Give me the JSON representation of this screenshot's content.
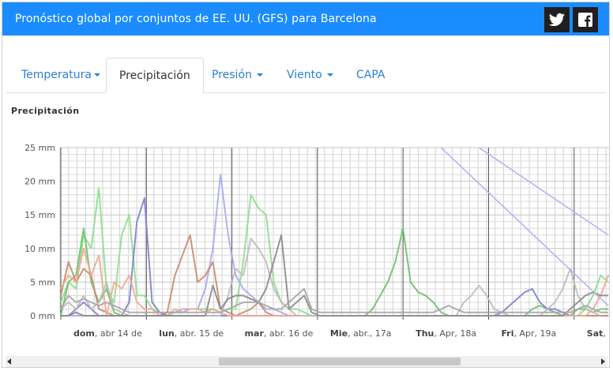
{
  "header": {
    "title": "Pronóstico global por conjuntos de EE. UU. (GFS) para Barcelona",
    "twitter_icon": "twitter-icon",
    "facebook_icon": "facebook-icon",
    "bg_color": "#1a8cff"
  },
  "tabs": [
    {
      "label": "Temperatura",
      "dropdown": true,
      "active": false
    },
    {
      "label": "Precipitación",
      "dropdown": false,
      "active": true
    },
    {
      "label": "Presión",
      "dropdown": true,
      "active": false
    },
    {
      "label": "Viento",
      "dropdown": true,
      "active": false
    },
    {
      "label": "CAPA",
      "dropdown": false,
      "active": false
    }
  ],
  "chart_title": "Precipitación",
  "chart_data": {
    "type": "line",
    "title": "Precipitación",
    "ylim": [
      0,
      25
    ],
    "y_ticks": [
      "0 mm",
      "5 mm",
      "10 mm",
      "15 mm",
      "20 mm",
      "25 mm"
    ],
    "x_labels": [
      {
        "bold": "dom",
        "rest": ", abr 14 de"
      },
      {
        "bold": "lun",
        "rest": ", abr. 15 de"
      },
      {
        "bold": "mar",
        "rest": ", abr. 16 de"
      },
      {
        "bold": "Mie",
        "rest": ", abr., 17a"
      },
      {
        "bold": "Thu",
        "rest": ", Apr, 18a"
      },
      {
        "bold": "Fri",
        "rest": ", Apr, 19a"
      },
      {
        "bold": "Sat",
        "rest": ","
      }
    ],
    "grid": true,
    "series": [
      {
        "color": "#8dde8d",
        "values": [
          2,
          5,
          4,
          12,
          10,
          19,
          4,
          2,
          12,
          15,
          3,
          3,
          1,
          0.5,
          0,
          0.5,
          0.5,
          1,
          1,
          1,
          1,
          0.5,
          1,
          1,
          8,
          18,
          16,
          15,
          5,
          2,
          1,
          1,
          0.5,
          0,
          0,
          0,
          0,
          0,
          0,
          0,
          0,
          0,
          0,
          0,
          0,
          0,
          0,
          0,
          0,
          0,
          0,
          0,
          0,
          0,
          0,
          0,
          0,
          0,
          0,
          0,
          0,
          0,
          0,
          0,
          0,
          0,
          0,
          0,
          0,
          1,
          3,
          6,
          5
        ]
      },
      {
        "color": "#6fbf6f",
        "values": [
          0,
          5,
          6,
          13,
          5,
          2,
          4,
          0.5,
          0,
          0,
          0,
          0,
          0,
          0,
          0,
          0,
          0,
          0,
          0,
          0,
          0,
          0,
          0,
          0,
          0,
          0,
          0,
          0,
          0,
          0,
          0,
          0,
          0,
          0,
          0,
          0,
          0,
          0,
          0,
          0,
          0,
          1,
          3,
          5,
          8,
          13,
          5,
          3.5,
          3,
          2,
          0.5,
          0,
          0,
          0,
          0,
          0,
          0,
          0,
          0,
          0,
          0,
          0,
          1,
          1.5,
          1,
          0.5,
          0,
          0,
          1,
          1,
          0.5,
          1,
          1
        ]
      },
      {
        "color": "#7f7fd0",
        "values": [
          0,
          0,
          1,
          2,
          1,
          0,
          0,
          0,
          0,
          2,
          14,
          17.5,
          2,
          0.5,
          0,
          0,
          0,
          0,
          0,
          0,
          0,
          0,
          0,
          0,
          0,
          0,
          0,
          0,
          0,
          0,
          0,
          0,
          0,
          0,
          0,
          0,
          0,
          0,
          0,
          0,
          0,
          0,
          0,
          0,
          0,
          0,
          0,
          0,
          0,
          0,
          0,
          0,
          0,
          0,
          0,
          0,
          0,
          0,
          0.5,
          1.5,
          2.5,
          3.5,
          4,
          2,
          1,
          1,
          0.5,
          0,
          0,
          0,
          0,
          0,
          0
        ]
      },
      {
        "color": "#a8a8ef",
        "values": [
          0,
          0,
          0,
          0,
          0,
          0,
          0,
          0,
          0,
          0,
          0,
          0,
          0,
          0,
          0.5,
          0.5,
          1,
          1,
          1,
          4,
          10,
          21,
          12,
          6,
          4,
          3,
          2,
          1,
          1,
          0.5,
          0,
          0,
          0,
          0,
          0,
          0,
          0,
          0,
          0,
          0,
          0,
          0,
          0,
          0,
          0,
          0,
          0,
          0,
          0,
          0,
          0,
          0,
          0,
          0,
          0,
          0,
          0,
          0,
          0,
          0,
          0,
          0,
          0,
          0,
          0,
          0,
          0,
          0,
          0,
          0,
          0,
          0,
          0
        ]
      },
      {
        "color": "#c98a6e",
        "values": [
          3,
          8,
          5,
          7,
          6,
          1,
          0.5,
          0,
          0,
          0,
          0,
          0,
          0,
          0,
          0.5,
          6,
          9,
          12,
          5,
          6,
          8,
          1,
          0.5,
          0,
          0.5,
          1,
          2,
          0.5,
          0,
          0,
          0,
          0,
          0,
          0,
          0,
          0,
          0,
          0,
          0,
          0,
          0,
          0,
          0,
          0,
          0,
          0,
          0,
          0,
          0,
          0,
          0,
          0,
          0,
          0,
          0,
          0,
          0,
          0,
          0,
          0,
          0,
          0,
          0,
          0,
          0,
          0,
          0,
          0,
          0,
          0,
          0,
          0,
          0
        ]
      },
      {
        "color": "#f0a890",
        "values": [
          4,
          6,
          5,
          10,
          6,
          9,
          0,
          5,
          4,
          6,
          2,
          1,
          1,
          0,
          0,
          1,
          0.5,
          1,
          1,
          0.5,
          1,
          0.5,
          0,
          0,
          0,
          0,
          0,
          0,
          0,
          0,
          0,
          0,
          0,
          0,
          0,
          0,
          0,
          0,
          0,
          0,
          0,
          0,
          0,
          0,
          0,
          0,
          0,
          0,
          0,
          0,
          0,
          0,
          0,
          0,
          0,
          0,
          0,
          0,
          0,
          0,
          0,
          0,
          0,
          0,
          0,
          0,
          0,
          0,
          0,
          0,
          1,
          3,
          6,
          5
        ]
      },
      {
        "color": "#bdbdbd",
        "values": [
          1,
          2,
          1,
          3,
          1,
          2,
          5,
          1,
          0.5,
          0,
          0,
          0,
          0,
          0,
          0,
          0,
          0,
          0,
          0,
          0,
          0,
          0,
          3,
          7,
          6,
          11.5,
          10,
          8,
          4,
          2,
          1,
          0,
          0,
          0,
          0,
          0,
          0,
          0,
          0,
          0,
          0,
          0,
          0,
          0,
          0,
          0,
          0,
          0,
          0,
          0,
          0,
          0,
          0,
          2,
          3,
          4.5,
          3,
          1,
          0.5,
          0,
          0,
          0,
          0,
          0,
          1,
          2,
          4,
          7,
          3,
          1,
          0.5,
          0
        ]
      },
      {
        "color": "#8a8a8a",
        "values": [
          0,
          0,
          0.5,
          0,
          0,
          0,
          0,
          0,
          0,
          0,
          0,
          0,
          0,
          0,
          0,
          0,
          0,
          0,
          0,
          0,
          4.5,
          1,
          2.5,
          3,
          3,
          2.5,
          2,
          4,
          8,
          12,
          1,
          2,
          3,
          0.5,
          0,
          0,
          0,
          0,
          0,
          0,
          0,
          0,
          0,
          0,
          0,
          0,
          0,
          0,
          0,
          0,
          0,
          0,
          0,
          0,
          0,
          0,
          0,
          0,
          0,
          0,
          0,
          0,
          0,
          0,
          0,
          0,
          0,
          1,
          2,
          3,
          3.5,
          3,
          3
        ]
      },
      {
        "color": "#a6a6a6",
        "values": [
          1,
          3,
          2,
          2.5,
          2,
          1.5,
          2,
          1.5,
          1,
          0.5,
          0.5,
          0.5,
          0.5,
          0.5,
          0.5,
          0.5,
          0.5,
          0.5,
          0.5,
          0.5,
          0.5,
          0.5,
          1,
          1.5,
          2,
          2,
          2,
          1.5,
          1,
          1,
          2,
          3,
          4,
          1,
          0.5,
          0.5,
          0.5,
          0.5,
          0.5,
          0.5,
          0.5,
          0.5,
          0.5,
          0.5,
          0.5,
          0.5,
          0.5,
          0.5,
          0.5,
          0.5,
          1,
          1.5,
          1,
          0.5,
          0.5,
          0.5,
          0.5,
          0.5,
          0.5,
          0.5,
          0.5,
          0.5,
          0.5,
          0.5,
          0.5,
          0.5,
          0.5,
          0.5,
          1,
          1.5,
          1,
          0.5,
          0.5
        ]
      }
    ],
    "diagonal_lines": {
      "color": "#b0b0ec",
      "note_series": [
        [
          62,
          25
        ],
        [
          76,
          0
        ]
      ]
    }
  },
  "scrollbar": {
    "left_arrow": "left-arrow-icon",
    "right_arrow": "right-arrow-icon"
  }
}
